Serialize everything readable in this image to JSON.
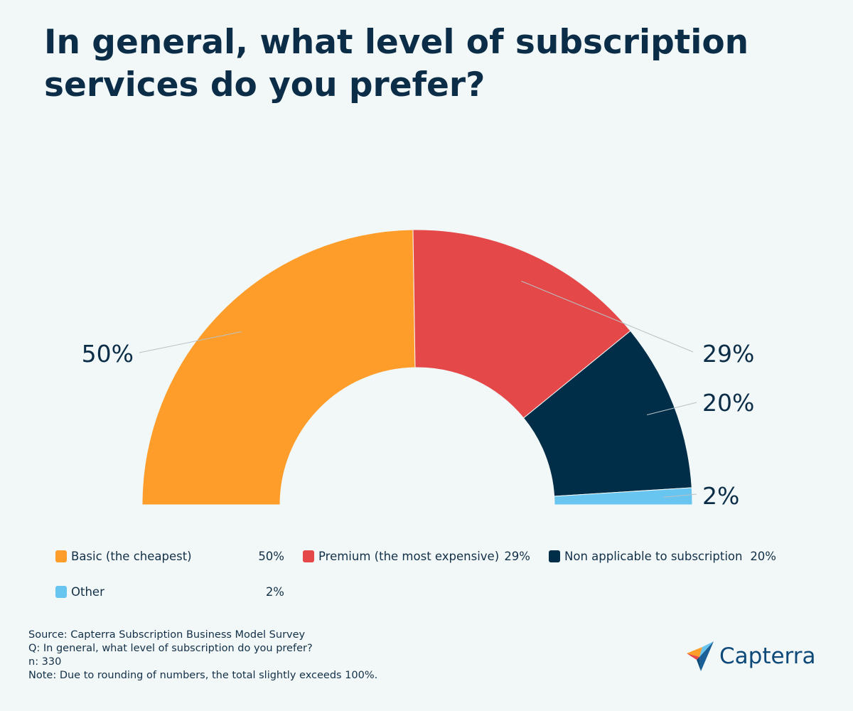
{
  "title": "In general, what level of subscription services do you prefer?",
  "chart_data": {
    "type": "pie",
    "variant": "semi-donut",
    "title": "In general, what level of subscription services do you prefer?",
    "categories": [
      "Basic (the cheapest)",
      "Premium (the most expensive)",
      "Non applicable to subscription",
      "Other"
    ],
    "values": [
      50,
      29,
      20,
      2
    ],
    "data_labels": [
      "50%",
      "29%",
      "20%",
      "2%"
    ],
    "legend_values": [
      "50%",
      "29%",
      "20%",
      "2%"
    ],
    "colors": [
      "#ff9d2b",
      "#e54848",
      "#002d47",
      "#68c5f0"
    ],
    "legend_placement": "bottom"
  },
  "source": {
    "lines": [
      "Source: Capterra Subscription Business Model Survey",
      "Q: In general, what level of subscription do you prefer?",
      "n: 330",
      "Note: Due to rounding of numbers, the total slightly exceeds 100%."
    ]
  },
  "logo": {
    "text": "Capterra"
  }
}
